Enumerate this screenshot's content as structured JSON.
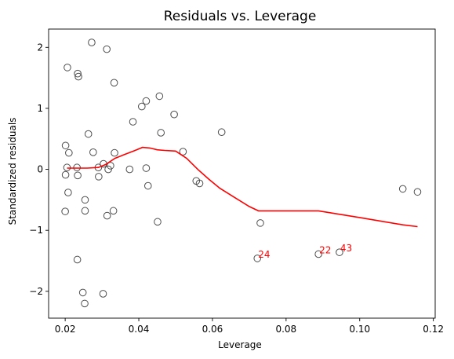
{
  "chart_data": {
    "type": "scatter",
    "title": "Residuals vs. Leverage",
    "xlabel": "Leverage",
    "ylabel": "Standardized residuals",
    "xlim": [
      0.0155,
      0.1205
    ],
    "ylim": [
      -2.44,
      2.3
    ],
    "xticks": [
      0.02,
      0.04,
      0.06,
      0.08,
      0.1,
      0.12
    ],
    "xtick_labels": [
      "0.02",
      "0.04",
      "0.06",
      "0.08",
      "0.10",
      "0.12"
    ],
    "yticks": [
      -2,
      -1,
      0,
      1,
      2
    ],
    "ytick_labels": [
      "−2",
      "−1",
      "0",
      "1",
      "2"
    ],
    "grid": false,
    "colors": {
      "points": "#4d4d4d",
      "lowess": "#ff0000",
      "annotations": "#ff0000"
    },
    "points": [
      {
        "x": 0.0206,
        "y": 1.67
      },
      {
        "x": 0.0272,
        "y": 2.08
      },
      {
        "x": 0.0313,
        "y": 1.97
      },
      {
        "x": 0.0234,
        "y": 1.57
      },
      {
        "x": 0.0236,
        "y": 1.52
      },
      {
        "x": 0.0333,
        "y": 1.42
      },
      {
        "x": 0.0456,
        "y": 1.2
      },
      {
        "x": 0.042,
        "y": 1.12
      },
      {
        "x": 0.0408,
        "y": 1.03
      },
      {
        "x": 0.0496,
        "y": 0.9
      },
      {
        "x": 0.0384,
        "y": 0.78
      },
      {
        "x": 0.0625,
        "y": 0.61
      },
      {
        "x": 0.046,
        "y": 0.6
      },
      {
        "x": 0.0263,
        "y": 0.58
      },
      {
        "x": 0.0201,
        "y": 0.39
      },
      {
        "x": 0.0276,
        "y": 0.28
      },
      {
        "x": 0.052,
        "y": 0.29
      },
      {
        "x": 0.0334,
        "y": 0.27
      },
      {
        "x": 0.021,
        "y": 0.27
      },
      {
        "x": 0.0304,
        "y": 0.09
      },
      {
        "x": 0.0323,
        "y": 0.06
      },
      {
        "x": 0.0205,
        "y": 0.03
      },
      {
        "x": 0.0232,
        "y": 0.03
      },
      {
        "x": 0.029,
        "y": 0.03
      },
      {
        "x": 0.0317,
        "y": 0.0
      },
      {
        "x": 0.0375,
        "y": 0.0
      },
      {
        "x": 0.042,
        "y": 0.02
      },
      {
        "x": 0.0201,
        "y": -0.09
      },
      {
        "x": 0.0234,
        "y": -0.1
      },
      {
        "x": 0.0291,
        "y": -0.12
      },
      {
        "x": 0.0556,
        "y": -0.19
      },
      {
        "x": 0.0565,
        "y": -0.23
      },
      {
        "x": 0.0425,
        "y": -0.27
      },
      {
        "x": 0.1117,
        "y": -0.32
      },
      {
        "x": 0.1157,
        "y": -0.37
      },
      {
        "x": 0.0208,
        "y": -0.38
      },
      {
        "x": 0.0254,
        "y": -0.5
      },
      {
        "x": 0.02,
        "y": -0.69
      },
      {
        "x": 0.0254,
        "y": -0.68
      },
      {
        "x": 0.0331,
        "y": -0.68
      },
      {
        "x": 0.0314,
        "y": -0.76
      },
      {
        "x": 0.0451,
        "y": -0.86
      },
      {
        "x": 0.073,
        "y": -0.88
      },
      {
        "x": 0.0233,
        "y": -1.48
      },
      {
        "x": 0.0722,
        "y": -1.46
      },
      {
        "x": 0.0888,
        "y": -1.39
      },
      {
        "x": 0.0945,
        "y": -1.36
      },
      {
        "x": 0.0248,
        "y": -2.02
      },
      {
        "x": 0.0303,
        "y": -2.04
      },
      {
        "x": 0.0253,
        "y": -2.2
      }
    ],
    "lowess": {
      "x": [
        0.0205,
        0.022,
        0.026,
        0.029,
        0.031,
        0.0335,
        0.036,
        0.039,
        0.041,
        0.043,
        0.045,
        0.047,
        0.05,
        0.053,
        0.056,
        0.059,
        0.062,
        0.066,
        0.07,
        0.0725,
        0.08,
        0.0888,
        0.1,
        0.1117,
        0.1157
      ],
      "y": [
        0.02,
        0.02,
        0.02,
        0.03,
        0.08,
        0.18,
        0.24,
        0.31,
        0.36,
        0.35,
        0.32,
        0.31,
        0.3,
        0.18,
        0.0,
        -0.16,
        -0.31,
        -0.46,
        -0.61,
        -0.68,
        -0.68,
        -0.68,
        -0.79,
        -0.91,
        -0.94
      ]
    },
    "annotations": [
      {
        "text": "24",
        "x": 0.0722,
        "y": -1.46
      },
      {
        "text": "22",
        "x": 0.0888,
        "y": -1.39
      },
      {
        "text": "43",
        "x": 0.0945,
        "y": -1.36
      }
    ]
  }
}
